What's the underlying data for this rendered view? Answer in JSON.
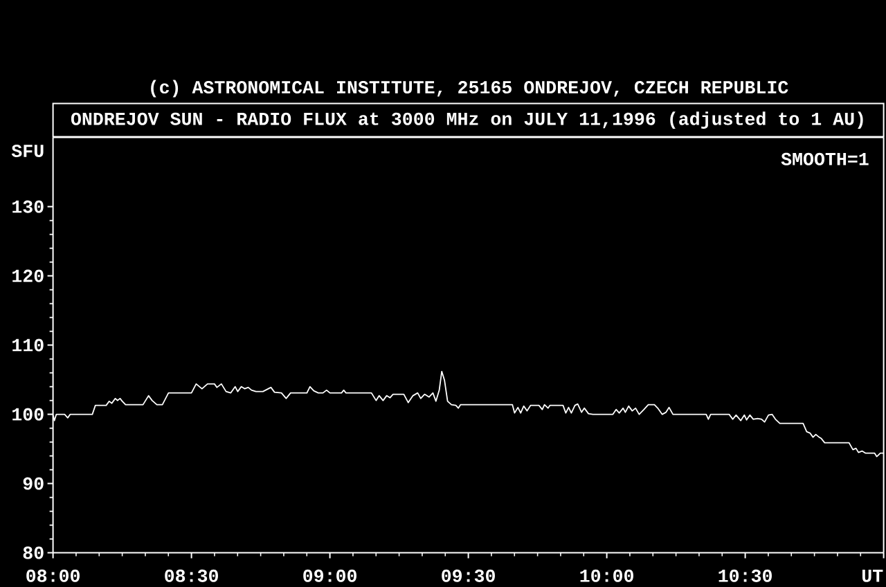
{
  "chart_data": {
    "type": "line",
    "title": "ONDREJOV SUN - RADIO FLUX at 3000 MHz on JULY 11,1996 (adjusted to 1 AU)",
    "xlabel": "UT",
    "ylabel": "SFU",
    "annotations": [
      "(c) ASTRONOMICAL INSTITUTE, 25165 ONDREJOV, CZECH REPUBLIC",
      "SMOOTH=1"
    ],
    "xlim": [
      8,
      11
    ],
    "ylim": [
      80,
      140
    ],
    "xticks": [
      {
        "value": 8,
        "label": "08:00"
      },
      {
        "value": 8.5,
        "label": "08:30"
      },
      {
        "value": 9,
        "label": "09:00"
      },
      {
        "value": 9.5,
        "label": "09:30"
      },
      {
        "value": 10,
        "label": "10:00"
      },
      {
        "value": 10.5,
        "label": "10:30"
      },
      {
        "value": 11,
        "label": null
      }
    ],
    "yticks": [
      80,
      90,
      100,
      110,
      120,
      130
    ],
    "line_style": "solid",
    "series": [
      {
        "color": "#ffffff",
        "x": [
          8.0,
          8.005,
          8.012,
          8.042,
          8.053,
          8.062,
          8.142,
          8.153,
          8.192,
          8.203,
          8.212,
          8.225,
          8.233,
          8.242,
          8.25,
          8.262,
          8.325,
          8.345,
          8.358,
          8.375,
          8.395,
          8.417,
          8.5,
          8.517,
          8.538,
          8.558,
          8.583,
          8.592,
          8.608,
          8.625,
          8.642,
          8.658,
          8.667,
          8.68,
          8.692,
          8.705,
          8.717,
          8.733,
          8.758,
          8.787,
          8.8,
          8.825,
          8.842,
          8.858,
          8.917,
          8.928,
          8.942,
          8.958,
          8.975,
          8.988,
          9.0,
          9.042,
          9.05,
          9.058,
          9.15,
          9.167,
          9.178,
          9.192,
          9.205,
          9.217,
          9.228,
          9.267,
          9.283,
          9.3,
          9.317,
          9.328,
          9.342,
          9.358,
          9.372,
          9.383,
          9.395,
          9.404,
          9.414,
          9.425,
          9.439,
          9.455,
          9.464,
          9.472,
          9.659,
          9.667,
          9.679,
          9.689,
          9.7,
          9.712,
          9.725,
          9.755,
          9.767,
          9.775,
          9.788,
          9.795,
          9.842,
          9.852,
          9.862,
          9.872,
          9.885,
          9.895,
          9.909,
          9.919,
          9.934,
          9.95,
          10.022,
          10.034,
          10.045,
          10.059,
          10.067,
          10.079,
          10.092,
          10.104,
          10.117,
          10.134,
          10.15,
          10.172,
          10.184,
          10.2,
          10.214,
          10.225,
          10.239,
          10.359,
          10.367,
          10.375,
          10.442,
          10.455,
          10.467,
          10.484,
          10.497,
          10.505,
          10.517,
          10.529,
          10.545,
          10.559,
          10.57,
          10.584,
          10.597,
          10.609,
          10.625,
          10.709,
          10.722,
          10.734,
          10.745,
          10.755,
          10.767,
          10.775,
          10.787,
          10.875,
          10.889,
          10.9,
          10.909,
          10.922,
          10.934,
          10.967,
          10.975,
          10.988,
          11.0
        ],
        "values": [
          99.9,
          99.1,
          100.0,
          100.0,
          99.5,
          100.0,
          100.0,
          101.3,
          101.3,
          101.9,
          101.6,
          102.3,
          102.0,
          102.3,
          101.9,
          101.4,
          101.4,
          102.7,
          102.0,
          101.4,
          101.4,
          103.1,
          103.1,
          104.4,
          103.7,
          104.4,
          104.4,
          103.9,
          104.4,
          103.3,
          103.1,
          104.0,
          103.3,
          104.0,
          103.7,
          103.9,
          103.5,
          103.3,
          103.3,
          103.9,
          103.2,
          103.1,
          102.3,
          103.1,
          103.1,
          104.0,
          103.4,
          103.1,
          103.1,
          103.5,
          103.1,
          103.1,
          103.5,
          103.1,
          103.1,
          102.0,
          102.7,
          102.0,
          102.7,
          102.4,
          102.9,
          102.9,
          101.7,
          102.7,
          103.1,
          102.3,
          102.9,
          102.5,
          103.1,
          101.9,
          103.5,
          106.2,
          104.9,
          101.9,
          101.4,
          101.3,
          100.9,
          101.4,
          101.4,
          100.2,
          101.0,
          100.2,
          101.2,
          100.5,
          101.3,
          101.3,
          100.7,
          101.4,
          100.9,
          101.3,
          101.3,
          100.2,
          101.0,
          100.2,
          101.3,
          101.5,
          100.3,
          100.9,
          100.1,
          100.0,
          100.0,
          100.7,
          100.2,
          100.9,
          100.3,
          101.2,
          100.5,
          100.9,
          100.0,
          100.7,
          101.4,
          101.4,
          100.9,
          100.0,
          100.3,
          101.0,
          100.0,
          100.0,
          99.3,
          100.0,
          100.0,
          99.3,
          99.9,
          99.1,
          99.9,
          99.2,
          99.9,
          99.3,
          99.4,
          99.3,
          98.9,
          99.9,
          100.0,
          99.3,
          98.7,
          98.7,
          97.5,
          97.3,
          96.7,
          97.1,
          96.7,
          96.5,
          95.9,
          95.9,
          94.9,
          95.1,
          94.5,
          94.7,
          94.4,
          94.4,
          93.9,
          94.4,
          94.4
        ]
      }
    ]
  }
}
